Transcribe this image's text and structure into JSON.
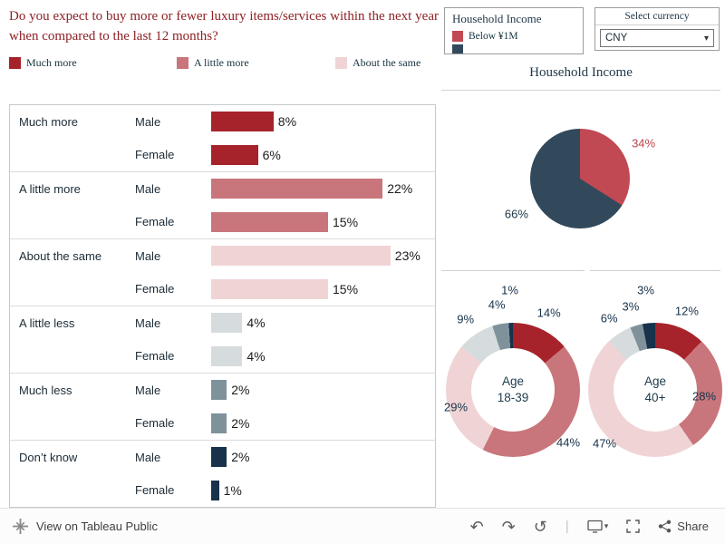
{
  "header": {
    "question": "Do you expect to buy more or fewer luxury items/services within the next year when compared to the last 12 months?",
    "answer_legend": [
      {
        "label": "Much more",
        "color": "#a7232b"
      },
      {
        "label": "A little more",
        "color": "#c8767b"
      },
      {
        "label": "About the same",
        "color": "#f0d4d5"
      }
    ]
  },
  "income_legend": {
    "title": "Household Income",
    "items": [
      {
        "label": "Below ¥1M",
        "color": "#c14953"
      },
      {
        "label": "",
        "color": "#32495b"
      }
    ]
  },
  "currency_panel": {
    "title": "Select currency",
    "selected": "CNY"
  },
  "income_section_title": "Household Income",
  "chart_data": [
    {
      "id": "expectation-by-gender",
      "type": "bar",
      "orientation": "horizontal",
      "categories": [
        "Much more",
        "A little more",
        "About the same",
        "A little less",
        "Much less",
        "Don’t know"
      ],
      "series": [
        {
          "name": "Male",
          "values": [
            8,
            22,
            23,
            4,
            2,
            2
          ]
        },
        {
          "name": "Female",
          "values": [
            6,
            15,
            15,
            4,
            2,
            1
          ]
        }
      ],
      "value_suffix": "%",
      "colors": [
        "#a7232b",
        "#c8767b",
        "#f0d4d5",
        "#d6dcdd",
        "#7f929b",
        "#17324a"
      ],
      "xlim": [
        0,
        25
      ],
      "grid": false
    },
    {
      "id": "household-income-pie",
      "type": "pie",
      "title": "Household Income",
      "values": [
        34,
        66
      ],
      "labels": [
        "34%",
        "66%"
      ],
      "colors": [
        "#c14953",
        "#32495b"
      ],
      "label_colors": [
        "#c0444c",
        "#21394a"
      ],
      "legend_position": "top-right"
    },
    {
      "id": "age-18-39",
      "type": "pie",
      "subtype": "donut",
      "center_label": [
        "Age",
        "18-39"
      ],
      "values": [
        14,
        44,
        29,
        9,
        4,
        1
      ],
      "labels": [
        "14%",
        "44%",
        "29%",
        "9%",
        "4%",
        "1%"
      ],
      "colors": [
        "#a7232b",
        "#c8767b",
        "#f0d4d5",
        "#d6dcdd",
        "#7f929b",
        "#17324a"
      ]
    },
    {
      "id": "age-40-plus",
      "type": "pie",
      "subtype": "donut",
      "center_label": [
        "Age",
        "40+"
      ],
      "values": [
        12,
        28,
        47,
        6,
        3,
        3
      ],
      "labels": [
        "12%",
        "28%",
        "47%",
        "6%",
        "3%",
        "3%"
      ],
      "colors": [
        "#a7232b",
        "#c8767b",
        "#f0d4d5",
        "#d6dcdd",
        "#7f929b",
        "#17324a"
      ]
    }
  ],
  "footer": {
    "brand_label": "View on Tableau Public",
    "icons": {
      "undo": "↶",
      "redo": "↷",
      "replay": "↺",
      "divider": "|",
      "caret": "▾"
    },
    "share_label": "Share"
  }
}
